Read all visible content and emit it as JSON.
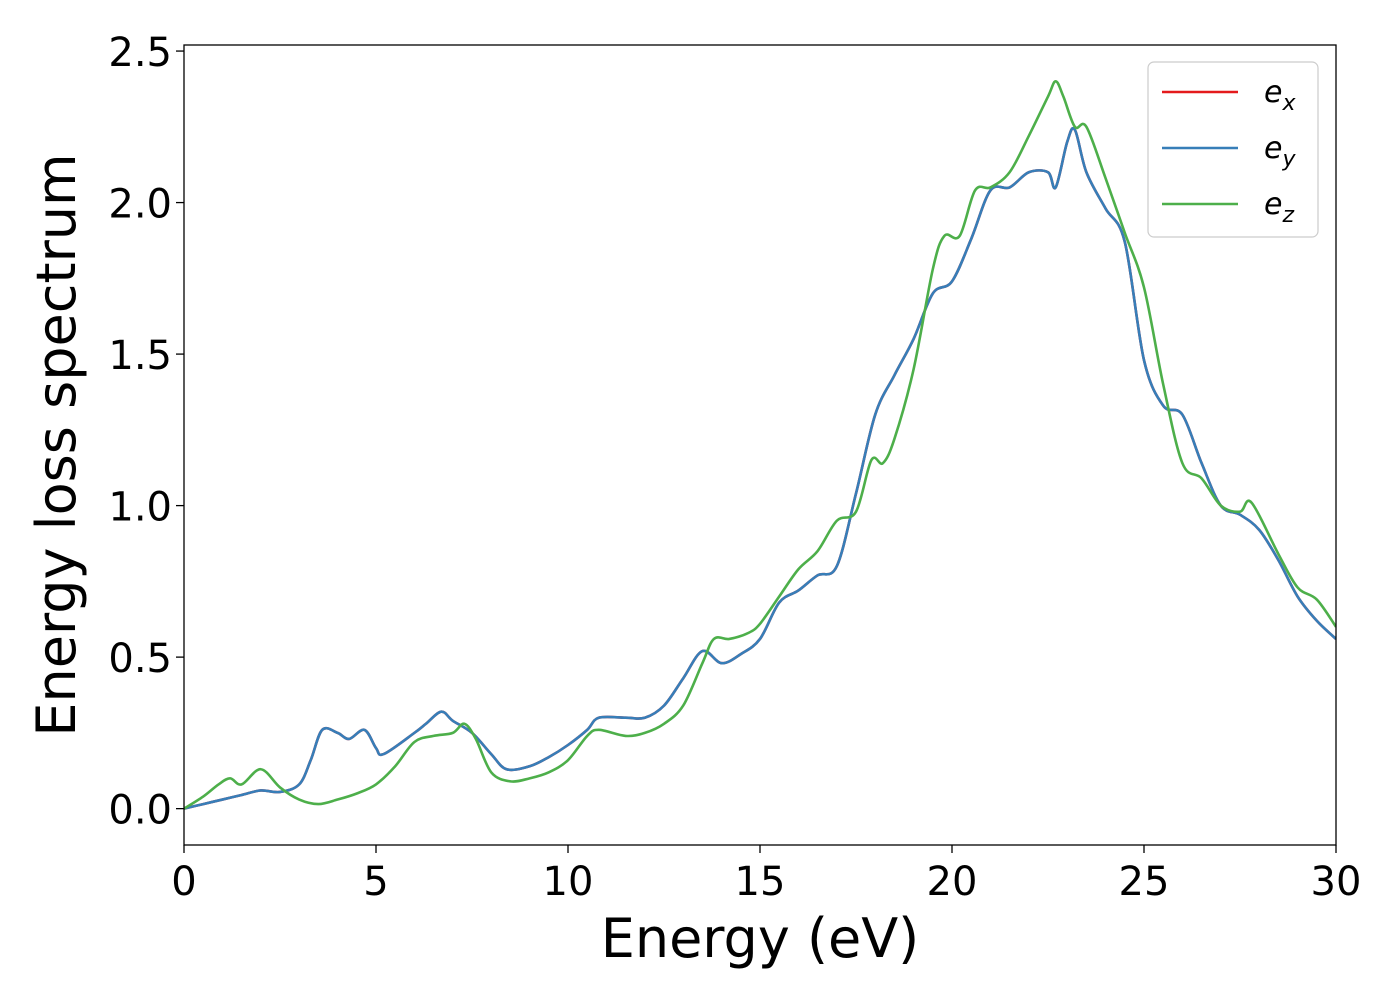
{
  "chart_data": {
    "type": "line",
    "title": "",
    "xlabel": "Energy (eV)",
    "ylabel": "Energy loss spectrum",
    "xlim": [
      0,
      30
    ],
    "ylim": [
      -0.12,
      2.52
    ],
    "xticks": [
      0,
      5,
      10,
      15,
      20,
      25,
      30
    ],
    "xtick_labels": [
      "0",
      "5",
      "10",
      "15",
      "20",
      "25",
      "30"
    ],
    "yticks": [
      0.0,
      0.5,
      1.0,
      1.5,
      2.0,
      2.5
    ],
    "ytick_labels": [
      "0.0",
      "0.5",
      "1.0",
      "1.5",
      "2.0",
      "2.5"
    ],
    "grid": false,
    "legend_position": "top-right",
    "series": [
      {
        "name": "e_x",
        "legend_base": "e",
        "legend_sub": "x",
        "color": "#e41a1c",
        "x": [
          0,
          0.5,
          1.0,
          1.5,
          2.0,
          2.5,
          3.0,
          3.3,
          3.6,
          4.0,
          4.3,
          4.7,
          5.0,
          5.2,
          6.0,
          6.3,
          6.7,
          7.0,
          7.5,
          8.0,
          8.4,
          9.0,
          9.5,
          10.0,
          10.5,
          10.8,
          11.5,
          12.0,
          12.5,
          13.0,
          13.5,
          14.0,
          14.5,
          15.0,
          15.5,
          16.0,
          16.5,
          17.0,
          17.5,
          18.0,
          18.5,
          19.0,
          19.5,
          20.0,
          20.5,
          21.0,
          21.5,
          22.0,
          22.5,
          22.7,
          23.0,
          23.2,
          23.5,
          24.0,
          24.5,
          25.0,
          25.5,
          26.0,
          26.5,
          27.0,
          27.5,
          28.0,
          28.5,
          29.0,
          29.5,
          30.0
        ],
        "y": [
          0.0,
          0.015,
          0.03,
          0.045,
          0.06,
          0.055,
          0.08,
          0.16,
          0.26,
          0.25,
          0.23,
          0.26,
          0.2,
          0.18,
          0.25,
          0.28,
          0.32,
          0.29,
          0.25,
          0.18,
          0.13,
          0.14,
          0.17,
          0.21,
          0.26,
          0.3,
          0.3,
          0.3,
          0.34,
          0.43,
          0.52,
          0.48,
          0.51,
          0.56,
          0.68,
          0.72,
          0.77,
          0.8,
          1.04,
          1.3,
          1.43,
          1.55,
          1.7,
          1.74,
          1.88,
          2.04,
          2.05,
          2.1,
          2.1,
          2.05,
          2.2,
          2.24,
          2.1,
          1.98,
          1.87,
          1.48,
          1.33,
          1.3,
          1.14,
          1.0,
          0.97,
          0.92,
          0.82,
          0.7,
          0.62,
          0.56
        ]
      },
      {
        "name": "e_y",
        "legend_base": "e",
        "legend_sub": "y",
        "color": "#377eb8",
        "x": [
          0,
          0.5,
          1.0,
          1.5,
          2.0,
          2.5,
          3.0,
          3.3,
          3.6,
          4.0,
          4.3,
          4.7,
          5.0,
          5.2,
          6.0,
          6.3,
          6.7,
          7.0,
          7.5,
          8.0,
          8.4,
          9.0,
          9.5,
          10.0,
          10.5,
          10.8,
          11.5,
          12.0,
          12.5,
          13.0,
          13.5,
          14.0,
          14.5,
          15.0,
          15.5,
          16.0,
          16.5,
          17.0,
          17.5,
          18.0,
          18.5,
          19.0,
          19.5,
          20.0,
          20.5,
          21.0,
          21.5,
          22.0,
          22.5,
          22.7,
          23.0,
          23.2,
          23.5,
          24.0,
          24.5,
          25.0,
          25.5,
          26.0,
          26.5,
          27.0,
          27.5,
          28.0,
          28.5,
          29.0,
          29.5,
          30.0
        ],
        "y": [
          0.0,
          0.015,
          0.03,
          0.045,
          0.06,
          0.055,
          0.08,
          0.16,
          0.26,
          0.25,
          0.23,
          0.26,
          0.2,
          0.18,
          0.25,
          0.28,
          0.32,
          0.29,
          0.25,
          0.18,
          0.13,
          0.14,
          0.17,
          0.21,
          0.26,
          0.3,
          0.3,
          0.3,
          0.34,
          0.43,
          0.52,
          0.48,
          0.51,
          0.56,
          0.68,
          0.72,
          0.77,
          0.8,
          1.04,
          1.3,
          1.43,
          1.55,
          1.7,
          1.74,
          1.88,
          2.04,
          2.05,
          2.1,
          2.1,
          2.05,
          2.2,
          2.24,
          2.1,
          1.98,
          1.87,
          1.48,
          1.33,
          1.3,
          1.14,
          1.0,
          0.97,
          0.92,
          0.82,
          0.7,
          0.62,
          0.56
        ]
      },
      {
        "name": "e_z",
        "legend_base": "e",
        "legend_sub": "z",
        "color": "#4daf4a",
        "x": [
          0,
          0.5,
          0.9,
          1.2,
          1.5,
          2.0,
          2.5,
          3.0,
          3.5,
          4.0,
          4.5,
          5.0,
          5.5,
          6.0,
          6.5,
          7.0,
          7.3,
          7.6,
          8.0,
          8.5,
          9.0,
          9.5,
          10.0,
          10.5,
          10.8,
          11.5,
          12.0,
          12.5,
          13.0,
          13.5,
          13.8,
          14.2,
          14.7,
          15.0,
          15.5,
          16.0,
          16.5,
          17.0,
          17.5,
          17.9,
          18.2,
          18.5,
          19.0,
          19.5,
          19.8,
          20.2,
          20.6,
          21.0,
          21.5,
          22.0,
          22.5,
          22.7,
          22.9,
          23.2,
          23.5,
          24.0,
          24.5,
          25.0,
          25.5,
          26.0,
          26.5,
          27.0,
          27.5,
          27.8,
          28.5,
          29.0,
          29.5,
          30.0
        ],
        "y": [
          0.0,
          0.04,
          0.08,
          0.1,
          0.08,
          0.13,
          0.07,
          0.03,
          0.015,
          0.03,
          0.05,
          0.08,
          0.14,
          0.22,
          0.24,
          0.25,
          0.28,
          0.23,
          0.12,
          0.09,
          0.1,
          0.12,
          0.16,
          0.24,
          0.26,
          0.24,
          0.25,
          0.28,
          0.34,
          0.48,
          0.56,
          0.56,
          0.58,
          0.61,
          0.7,
          0.79,
          0.85,
          0.95,
          0.98,
          1.15,
          1.14,
          1.22,
          1.45,
          1.78,
          1.89,
          1.89,
          2.04,
          2.05,
          2.1,
          2.22,
          2.35,
          2.4,
          2.35,
          2.25,
          2.25,
          2.08,
          1.9,
          1.72,
          1.4,
          1.14,
          1.09,
          1.0,
          0.98,
          1.01,
          0.84,
          0.73,
          0.69,
          0.6
        ]
      }
    ]
  }
}
